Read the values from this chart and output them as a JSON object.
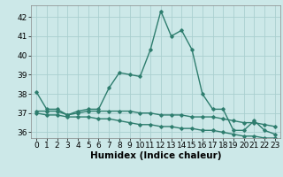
{
  "title": "",
  "xlabel": "Humidex (Indice chaleur)",
  "x": [
    0,
    1,
    2,
    3,
    4,
    5,
    6,
    7,
    8,
    9,
    10,
    11,
    12,
    13,
    14,
    15,
    16,
    17,
    18,
    19,
    20,
    21,
    22,
    23
  ],
  "line1": [
    38.1,
    37.2,
    37.2,
    36.9,
    37.1,
    37.2,
    37.2,
    38.3,
    39.1,
    39.0,
    38.9,
    40.3,
    42.3,
    41.0,
    41.3,
    40.3,
    38.0,
    37.2,
    37.2,
    36.1,
    36.1,
    36.6,
    36.1,
    35.9
  ],
  "line2": [
    37.1,
    37.1,
    37.1,
    36.9,
    37.0,
    37.1,
    37.1,
    37.1,
    37.1,
    37.1,
    37.0,
    37.0,
    36.9,
    36.9,
    36.9,
    36.8,
    36.8,
    36.8,
    36.7,
    36.6,
    36.5,
    36.5,
    36.4,
    36.3
  ],
  "line3": [
    37.0,
    36.9,
    36.9,
    36.8,
    36.8,
    36.8,
    36.7,
    36.7,
    36.6,
    36.5,
    36.4,
    36.4,
    36.3,
    36.3,
    36.2,
    36.2,
    36.1,
    36.1,
    36.0,
    35.9,
    35.8,
    35.8,
    35.7,
    35.7
  ],
  "line_color": "#2e7d6e",
  "bg_color": "#cce8e8",
  "grid_color": "#aacfcf",
  "ylim": [
    35.7,
    42.6
  ],
  "yticks": [
    36,
    37,
    38,
    39,
    40,
    41,
    42
  ],
  "xticks": [
    0,
    1,
    2,
    3,
    4,
    5,
    6,
    7,
    8,
    9,
    10,
    11,
    12,
    13,
    14,
    15,
    16,
    17,
    18,
    19,
    20,
    21,
    22,
    23
  ],
  "marker": "D",
  "markersize": 1.8,
  "linewidth": 1.0,
  "tick_fontsize": 6.5,
  "label_fontsize": 7.5
}
